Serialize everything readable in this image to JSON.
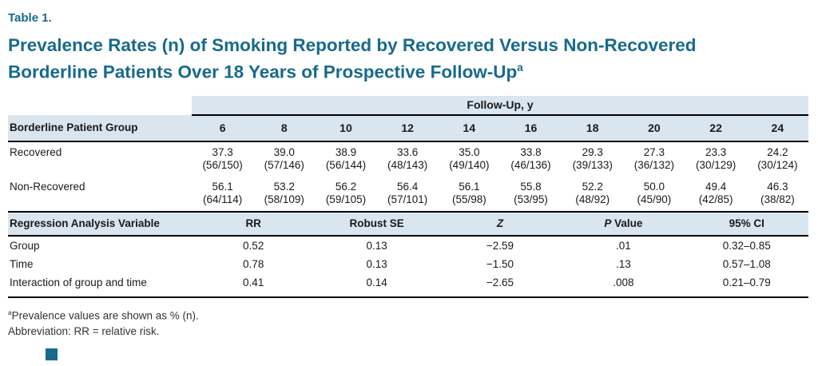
{
  "colors": {
    "accent": "#176a8c",
    "header_band": "#d9e5ef",
    "rule": "#000000",
    "text": "#1a1a1a"
  },
  "header": {
    "table_label": "Table 1.",
    "title_line1": "Prevalence Rates (n) of Smoking Reported by Recovered Versus Non-Recovered",
    "title_line2": "Borderline Patients Over 18 Years of Prospective Follow-Up",
    "title_sup": "a"
  },
  "prevalence": {
    "span_header": "Follow-Up, y",
    "group_col_header": "Borderline Patient Group",
    "year_headers": [
      "6",
      "8",
      "10",
      "12",
      "14",
      "16",
      "18",
      "20",
      "22",
      "24"
    ],
    "rows": [
      {
        "label": "Recovered",
        "cells": [
          "37.3\n(56/150)",
          "39.0\n(57/146)",
          "38.9\n(56/144)",
          "33.6\n(48/143)",
          "35.0\n(49/140)",
          "33.8\n(46/136)",
          "29.3\n(39/133)",
          "27.3\n(36/132)",
          "23.3\n(30/129)",
          "24.2\n(30/124)"
        ]
      },
      {
        "label": "Non-Recovered",
        "cells": [
          "56.1\n(64/114)",
          "53.2\n(58/109)",
          "56.2\n(59/105)",
          "56.4\n(57/101)",
          "56.1\n(55/98)",
          "55.8\n(53/95)",
          "52.2\n(48/92)",
          "50.0\n(45/90)",
          "49.4\n(42/85)",
          "46.3\n(38/82)"
        ]
      }
    ]
  },
  "regression": {
    "header_variable": "Regression Analysis Variable",
    "header_rr": "RR",
    "header_se": "Robust SE",
    "header_z": "Z",
    "header_p_italic": "P",
    "header_p_rest": " Value",
    "header_ci": "95% CI",
    "rows": [
      {
        "label": "Group",
        "cells": [
          "0.52",
          "0.13",
          "−2.59",
          ".01",
          "0.32–0.85"
        ]
      },
      {
        "label": "Time",
        "cells": [
          "0.78",
          "0.13",
          "−1.50",
          ".13",
          "0.57–1.08"
        ]
      },
      {
        "label": "Interaction of group and time",
        "cells": [
          "0.41",
          "0.14",
          "−2.65",
          ".008",
          "0.21–0.79"
        ]
      }
    ]
  },
  "footnotes": {
    "a_sup": "a",
    "a_text": "Prevalence values are shown as % (n).",
    "abbrev": "Abbreviation: RR = relative risk."
  }
}
